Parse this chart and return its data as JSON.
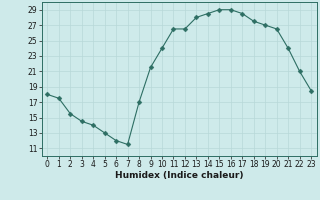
{
  "x": [
    0,
    1,
    2,
    3,
    4,
    5,
    6,
    7,
    8,
    9,
    10,
    11,
    12,
    13,
    14,
    15,
    16,
    17,
    18,
    19,
    20,
    21,
    22,
    23
  ],
  "y": [
    18,
    17.5,
    15.5,
    14.5,
    14,
    13,
    12,
    11.5,
    17,
    21.5,
    24,
    26.5,
    26.5,
    28,
    28.5,
    29,
    29,
    28.5,
    27.5,
    27,
    26.5,
    24,
    21,
    18.5
  ],
  "line_color": "#2d6e63",
  "marker": "D",
  "marker_size": 2.5,
  "bg_color": "#ceeaea",
  "grid_color": "#b8d8d8",
  "xlabel": "Humidex (Indice chaleur)",
  "xlim": [
    -0.5,
    23.5
  ],
  "ylim": [
    10,
    30
  ],
  "yticks": [
    11,
    13,
    15,
    17,
    19,
    21,
    23,
    25,
    27,
    29
  ],
  "xticks": [
    0,
    1,
    2,
    3,
    4,
    5,
    6,
    7,
    8,
    9,
    10,
    11,
    12,
    13,
    14,
    15,
    16,
    17,
    18,
    19,
    20,
    21,
    22,
    23
  ],
  "tick_fontsize": 5.5,
  "label_fontsize": 6.5
}
